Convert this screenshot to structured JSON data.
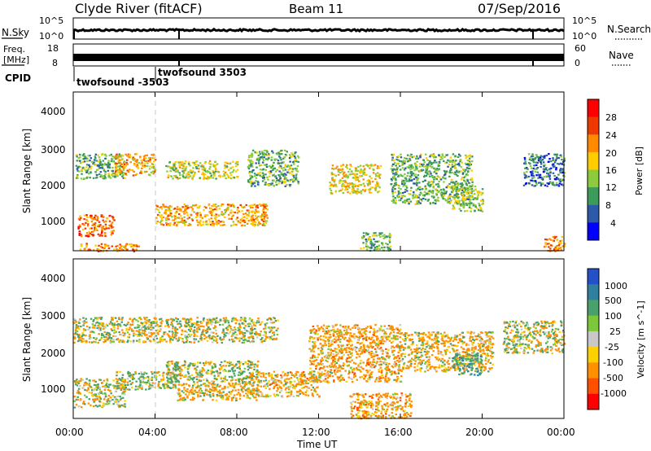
{
  "header": {
    "station": "Clyde River (fitACF)",
    "beam": "Beam 11",
    "date": "07/Sep/2016"
  },
  "info_panels": {
    "nsky_label": "N.Sky",
    "nsky_ticks": [
      "10^5",
      "10^0"
    ],
    "nsearch_label": "N.Search",
    "nsearch_ticks": [
      "10^5",
      "10^0"
    ],
    "freq_label_1": "Freq.",
    "freq_label_2": "[MHz]",
    "freq_ticks": [
      "18",
      "8"
    ],
    "nave_label": "Nave",
    "nave_ticks": [
      "60",
      "0"
    ],
    "cpid_label": "CPID",
    "cpid_entries": [
      "twofsound -3503",
      "twofsound 3503"
    ]
  },
  "power_panel": {
    "ylabel": "Slant Range [km]",
    "yticks": [
      "4000",
      "3000",
      "2000",
      "1000"
    ],
    "colorbar_label": "Power [dB]",
    "colorbar_ticks": [
      "28",
      "24",
      "20",
      "16",
      "12",
      "8",
      "4"
    ],
    "colorbar_colors": [
      "#ff0000",
      "#ee3a00",
      "#ff8a00",
      "#ffcc00",
      "#8ccc3c",
      "#3c9a5a",
      "#2a5aa8",
      "#0000ff"
    ]
  },
  "velocity_panel": {
    "ylabel": "Slant Range [km]",
    "yticks": [
      "4000",
      "3000",
      "2000",
      "1000"
    ],
    "colorbar_label": "Velocity [m s^-1]",
    "colorbar_ticks": [
      "1000",
      "500",
      "100",
      "25",
      "-25",
      "-100",
      "-500",
      "-1000"
    ],
    "colorbar_colors": [
      "#2450c8",
      "#2e7fa0",
      "#4aa06a",
      "#7cc83a",
      "#c8c8c8",
      "#ffd000",
      "#ff9000",
      "#ff5000",
      "#ff0000"
    ]
  },
  "xaxis": {
    "label": "Time UT",
    "ticks": [
      "00:00",
      "04:00",
      "08:00",
      "12:00",
      "16:00",
      "20:00",
      "00:00"
    ]
  },
  "chart_data": [
    {
      "type": "heatmap",
      "title": "Power [dB]",
      "xlabel": "Time UT",
      "ylabel": "Slant Range [km]",
      "xlim": [
        0,
        24
      ],
      "ylim": [
        180,
        4600
      ],
      "zlim": [
        0,
        32
      ],
      "regions": [
        {
          "t": [
            0.1,
            2.5
          ],
          "r": [
            2200,
            2900
          ],
          "v": 12
        },
        {
          "t": [
            0.2,
            2.0
          ],
          "r": [
            600,
            1200
          ],
          "v": 24
        },
        {
          "t": [
            0.3,
            3.2
          ],
          "r": [
            180,
            400
          ],
          "v": 22
        },
        {
          "t": [
            2.0,
            4.0
          ],
          "r": [
            2300,
            2900
          ],
          "v": 20
        },
        {
          "t": [
            4.0,
            9.5
          ],
          "r": [
            900,
            1500
          ],
          "v": 20
        },
        {
          "t": [
            4.5,
            8.0
          ],
          "r": [
            2200,
            2700
          ],
          "v": 16
        },
        {
          "t": [
            8.5,
            11.0
          ],
          "r": [
            2000,
            3000
          ],
          "v": 12
        },
        {
          "t": [
            12.5,
            15.0
          ],
          "r": [
            1800,
            2600
          ],
          "v": 18
        },
        {
          "t": [
            14.0,
            15.5
          ],
          "r": [
            200,
            700
          ],
          "v": 12
        },
        {
          "t": [
            15.5,
            19.5
          ],
          "r": [
            1500,
            2900
          ],
          "v": 12
        },
        {
          "t": [
            18.5,
            20.0
          ],
          "r": [
            1300,
            2000
          ],
          "v": 14
        },
        {
          "t": [
            22.0,
            24.0
          ],
          "r": [
            2000,
            2900
          ],
          "v": 8
        },
        {
          "t": [
            23.0,
            24.0
          ],
          "r": [
            180,
            600
          ],
          "v": 22
        }
      ]
    },
    {
      "type": "heatmap",
      "title": "Velocity [m s^-1]",
      "xlabel": "Time UT",
      "ylabel": "Slant Range [km]",
      "xlim": [
        0,
        24
      ],
      "ylim": [
        180,
        4600
      ],
      "zlim": [
        -1000,
        1000
      ],
      "regions": [
        {
          "t": [
            0.0,
            10.0
          ],
          "r": [
            2300,
            3000
          ],
          "v": 0
        },
        {
          "t": [
            0.0,
            2.5
          ],
          "r": [
            500,
            1300
          ],
          "v": 0
        },
        {
          "t": [
            2.0,
            5.0
          ],
          "r": [
            1000,
            1500
          ],
          "v": 80
        },
        {
          "t": [
            4.5,
            9.0
          ],
          "r": [
            1200,
            1800
          ],
          "v": 60
        },
        {
          "t": [
            5.0,
            9.0
          ],
          "r": [
            700,
            1200
          ],
          "v": -120
        },
        {
          "t": [
            8.5,
            12.0
          ],
          "r": [
            800,
            1500
          ],
          "v": -200
        },
        {
          "t": [
            11.5,
            16.0
          ],
          "r": [
            1200,
            2800
          ],
          "v": -220
        },
        {
          "t": [
            13.5,
            16.5
          ],
          "r": [
            200,
            900
          ],
          "v": -250
        },
        {
          "t": [
            16.0,
            20.5
          ],
          "r": [
            1500,
            2600
          ],
          "v": -150
        },
        {
          "t": [
            18.5,
            20.0
          ],
          "r": [
            1400,
            2000
          ],
          "v": 300
        },
        {
          "t": [
            21.0,
            24.0
          ],
          "r": [
            2000,
            2900
          ],
          "v": 0
        }
      ]
    }
  ]
}
